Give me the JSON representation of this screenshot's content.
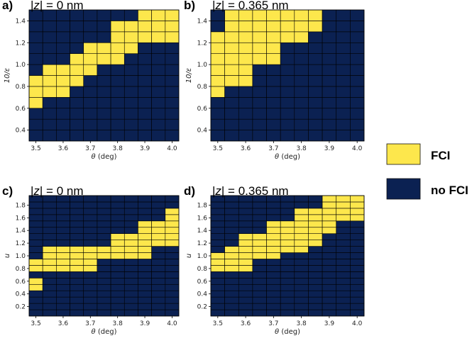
{
  "colors": {
    "fci": "#fde74c",
    "no_fci": "#0b2152",
    "grid": "#000000"
  },
  "legend": [
    {
      "key": "fci",
      "label": "FCI"
    },
    {
      "key": "no_fci",
      "label": "no FCI"
    }
  ],
  "chart_data": [
    {
      "type": "heatmap",
      "panel_label": "a)",
      "title_prefix": "|",
      "title_var": "z",
      "title_suffix": "| = 0 nm",
      "xlabel_var": "θ",
      "xlabel_unit": " (deg)",
      "ylabel": "10/ε",
      "x": [
        3.5,
        3.55,
        3.6,
        3.65,
        3.7,
        3.75,
        3.8,
        3.85,
        3.9,
        3.95,
        4.0
      ],
      "x_ticks": [
        3.5,
        3.6,
        3.7,
        3.8,
        3.9,
        4.0
      ],
      "x_tick_labels": [
        "3.5",
        "3.6",
        "3.7",
        "3.8",
        "3.9",
        "4.0"
      ],
      "y": [
        0.35,
        0.45,
        0.55,
        0.65,
        0.75,
        0.85,
        0.95,
        1.05,
        1.15,
        1.25,
        1.35,
        1.45
      ],
      "y_ticks": [
        0.4,
        0.6,
        0.8,
        1.0,
        1.2,
        1.4
      ],
      "y_tick_labels": [
        "0.4",
        "0.6",
        "0.8",
        "1.0",
        "1.2",
        "1.4"
      ],
      "values": [
        [
          0,
          0,
          0,
          0,
          0,
          0,
          0,
          0,
          0,
          0,
          0
        ],
        [
          0,
          0,
          0,
          0,
          0,
          0,
          0,
          0,
          0,
          0,
          0
        ],
        [
          0,
          0,
          0,
          0,
          0,
          0,
          0,
          0,
          0,
          0,
          0
        ],
        [
          1,
          0,
          0,
          0,
          0,
          0,
          0,
          0,
          0,
          0,
          0
        ],
        [
          1,
          1,
          1,
          0,
          0,
          0,
          0,
          0,
          0,
          0,
          0
        ],
        [
          1,
          1,
          1,
          1,
          0,
          0,
          0,
          0,
          0,
          0,
          0
        ],
        [
          0,
          1,
          1,
          1,
          1,
          0,
          0,
          0,
          0,
          0,
          0
        ],
        [
          0,
          0,
          0,
          1,
          1,
          1,
          1,
          0,
          0,
          0,
          0
        ],
        [
          0,
          0,
          0,
          0,
          1,
          1,
          1,
          1,
          0,
          0,
          0
        ],
        [
          0,
          0,
          0,
          0,
          0,
          0,
          1,
          1,
          1,
          1,
          1
        ],
        [
          0,
          0,
          0,
          0,
          0,
          0,
          1,
          1,
          1,
          1,
          1
        ],
        [
          0,
          0,
          0,
          0,
          0,
          0,
          0,
          0,
          1,
          1,
          1
        ]
      ]
    },
    {
      "type": "heatmap",
      "panel_label": "b)",
      "title_prefix": "|",
      "title_var": "z",
      "title_suffix": "| = 0.365 nm",
      "xlabel_var": "θ",
      "xlabel_unit": " (deg)",
      "ylabel": "10/ε",
      "x": [
        3.5,
        3.55,
        3.6,
        3.65,
        3.7,
        3.75,
        3.8,
        3.85,
        3.9,
        3.95,
        4.0
      ],
      "x_ticks": [
        3.5,
        3.6,
        3.7,
        3.8,
        3.9,
        4.0
      ],
      "x_tick_labels": [
        "3.5",
        "3.6",
        "3.7",
        "3.8",
        "3.9",
        "4.0"
      ],
      "y": [
        0.35,
        0.45,
        0.55,
        0.65,
        0.75,
        0.85,
        0.95,
        1.05,
        1.15,
        1.25,
        1.35,
        1.45
      ],
      "y_ticks": [
        0.4,
        0.6,
        0.8,
        1.0,
        1.2,
        1.4
      ],
      "y_tick_labels": [
        "0.4",
        "0.6",
        "0.8",
        "1.0",
        "1.2",
        "1.4"
      ],
      "values": [
        [
          0,
          0,
          0,
          0,
          0,
          0,
          0,
          0,
          0,
          0,
          0
        ],
        [
          0,
          0,
          0,
          0,
          0,
          0,
          0,
          0,
          0,
          0,
          0
        ],
        [
          0,
          0,
          0,
          0,
          0,
          0,
          0,
          0,
          0,
          0,
          0
        ],
        [
          0,
          0,
          0,
          0,
          0,
          0,
          0,
          0,
          0,
          0,
          0
        ],
        [
          1,
          0,
          0,
          0,
          0,
          0,
          0,
          0,
          0,
          0,
          0
        ],
        [
          1,
          1,
          1,
          0,
          0,
          0,
          0,
          0,
          0,
          0,
          0
        ],
        [
          1,
          1,
          1,
          0,
          0,
          0,
          0,
          0,
          0,
          0,
          0
        ],
        [
          1,
          1,
          1,
          1,
          1,
          0,
          0,
          0,
          0,
          0,
          0
        ],
        [
          1,
          1,
          1,
          1,
          1,
          0,
          0,
          0,
          0,
          0,
          0
        ],
        [
          1,
          1,
          1,
          1,
          1,
          1,
          1,
          0,
          0,
          0,
          0
        ],
        [
          0,
          1,
          1,
          1,
          1,
          1,
          1,
          1,
          0,
          0,
          0
        ],
        [
          0,
          1,
          1,
          1,
          1,
          1,
          1,
          1,
          0,
          0,
          0
        ]
      ]
    },
    {
      "type": "heatmap",
      "panel_label": "c)",
      "title_prefix": "|",
      "title_var": "z",
      "title_suffix": "| = 0 nm",
      "xlabel_var": "θ",
      "xlabel_unit": " (deg)",
      "ylabel": "u",
      "x": [
        3.5,
        3.55,
        3.6,
        3.65,
        3.7,
        3.75,
        3.8,
        3.85,
        3.9,
        3.95,
        4.0
      ],
      "x_ticks": [
        3.5,
        3.6,
        3.7,
        3.8,
        3.9,
        4.0
      ],
      "x_tick_labels": [
        "3.5",
        "3.6",
        "3.7",
        "3.8",
        "3.9",
        "4.0"
      ],
      "y": [
        0.1,
        0.2,
        0.3,
        0.4,
        0.5,
        0.6,
        0.7,
        0.8,
        0.9,
        1.0,
        1.1,
        1.2,
        1.3,
        1.4,
        1.5,
        1.6,
        1.7,
        1.8,
        1.9
      ],
      "y_ticks": [
        0.2,
        0.4,
        0.6,
        0.8,
        1.0,
        1.2,
        1.4,
        1.6,
        1.8
      ],
      "y_tick_labels": [
        "0.2",
        "0.4",
        "0.6",
        "0.8",
        "1.0",
        "1.2",
        "1.4",
        "1.6",
        "1.8"
      ],
      "values": [
        [
          0,
          0,
          0,
          0,
          0,
          0,
          0,
          0,
          0,
          0,
          0
        ],
        [
          0,
          0,
          0,
          0,
          0,
          0,
          0,
          0,
          0,
          0,
          0
        ],
        [
          0,
          0,
          0,
          0,
          0,
          0,
          0,
          0,
          0,
          0,
          0
        ],
        [
          0,
          0,
          0,
          0,
          0,
          0,
          0,
          0,
          0,
          0,
          0
        ],
        [
          1,
          0,
          0,
          0,
          0,
          0,
          0,
          0,
          0,
          0,
          0
        ],
        [
          1,
          0,
          0,
          0,
          0,
          0,
          0,
          0,
          0,
          0,
          0
        ],
        [
          0,
          0,
          0,
          0,
          0,
          0,
          0,
          0,
          0,
          0,
          0
        ],
        [
          1,
          1,
          1,
          1,
          1,
          0,
          0,
          0,
          0,
          0,
          0
        ],
        [
          1,
          1,
          1,
          1,
          1,
          0,
          0,
          0,
          0,
          0,
          0
        ],
        [
          0,
          1,
          1,
          1,
          1,
          1,
          1,
          1,
          1,
          0,
          0
        ],
        [
          0,
          1,
          1,
          1,
          1,
          1,
          1,
          1,
          1,
          0,
          0
        ],
        [
          0,
          0,
          0,
          0,
          0,
          0,
          1,
          1,
          1,
          1,
          1
        ],
        [
          0,
          0,
          0,
          0,
          0,
          0,
          1,
          1,
          1,
          1,
          1
        ],
        [
          0,
          0,
          0,
          0,
          0,
          0,
          0,
          0,
          1,
          1,
          1
        ],
        [
          0,
          0,
          0,
          0,
          0,
          0,
          0,
          0,
          1,
          1,
          1
        ],
        [
          0,
          0,
          0,
          0,
          0,
          0,
          0,
          0,
          0,
          0,
          1
        ],
        [
          0,
          0,
          0,
          0,
          0,
          0,
          0,
          0,
          0,
          0,
          1
        ],
        [
          0,
          0,
          0,
          0,
          0,
          0,
          0,
          0,
          0,
          0,
          0
        ],
        [
          0,
          0,
          0,
          0,
          0,
          0,
          0,
          0,
          0,
          0,
          0
        ]
      ]
    },
    {
      "type": "heatmap",
      "panel_label": "d)",
      "title_prefix": "|",
      "title_var": "z",
      "title_suffix": "| = 0.365 nm",
      "xlabel_var": "θ",
      "xlabel_unit": " (deg)",
      "ylabel": "u",
      "x": [
        3.5,
        3.55,
        3.6,
        3.65,
        3.7,
        3.75,
        3.8,
        3.85,
        3.9,
        3.95,
        4.0
      ],
      "x_ticks": [
        3.5,
        3.6,
        3.7,
        3.8,
        3.9,
        4.0
      ],
      "x_tick_labels": [
        "3.5",
        "3.6",
        "3.7",
        "3.8",
        "3.9",
        "4.0"
      ],
      "y": [
        0.1,
        0.2,
        0.3,
        0.4,
        0.5,
        0.6,
        0.7,
        0.8,
        0.9,
        1.0,
        1.1,
        1.2,
        1.3,
        1.4,
        1.5,
        1.6,
        1.7,
        1.8,
        1.9
      ],
      "y_ticks": [
        0.2,
        0.4,
        0.6,
        0.8,
        1.0,
        1.2,
        1.4,
        1.6,
        1.8
      ],
      "y_tick_labels": [
        "0.2",
        "0.4",
        "0.6",
        "0.8",
        "1.0",
        "1.2",
        "1.4",
        "1.6",
        "1.8"
      ],
      "values": [
        [
          0,
          0,
          0,
          0,
          0,
          0,
          0,
          0,
          0,
          0,
          0
        ],
        [
          0,
          0,
          0,
          0,
          0,
          0,
          0,
          0,
          0,
          0,
          0
        ],
        [
          0,
          0,
          0,
          0,
          0,
          0,
          0,
          0,
          0,
          0,
          0
        ],
        [
          0,
          0,
          0,
          0,
          0,
          0,
          0,
          0,
          0,
          0,
          0
        ],
        [
          0,
          0,
          0,
          0,
          0,
          0,
          0,
          0,
          0,
          0,
          0
        ],
        [
          0,
          0,
          0,
          0,
          0,
          0,
          0,
          0,
          0,
          0,
          0
        ],
        [
          0,
          0,
          0,
          0,
          0,
          0,
          0,
          0,
          0,
          0,
          0
        ],
        [
          1,
          1,
          1,
          0,
          0,
          0,
          0,
          0,
          0,
          0,
          0
        ],
        [
          1,
          1,
          1,
          0,
          0,
          0,
          0,
          0,
          0,
          0,
          0
        ],
        [
          1,
          1,
          1,
          1,
          1,
          0,
          0,
          0,
          0,
          0,
          0
        ],
        [
          0,
          1,
          1,
          1,
          1,
          1,
          1,
          0,
          0,
          0,
          0
        ],
        [
          0,
          0,
          1,
          1,
          1,
          1,
          1,
          1,
          0,
          0,
          0
        ],
        [
          0,
          0,
          1,
          1,
          1,
          1,
          1,
          1,
          0,
          0,
          0
        ],
        [
          0,
          0,
          0,
          0,
          1,
          1,
          1,
          1,
          1,
          0,
          0
        ],
        [
          0,
          0,
          0,
          0,
          1,
          1,
          1,
          1,
          1,
          0,
          0
        ],
        [
          0,
          0,
          0,
          0,
          0,
          0,
          1,
          1,
          1,
          1,
          1
        ],
        [
          0,
          0,
          0,
          0,
          0,
          0,
          1,
          1,
          1,
          1,
          1
        ],
        [
          0,
          0,
          0,
          0,
          0,
          0,
          0,
          0,
          1,
          1,
          1
        ],
        [
          0,
          0,
          0,
          0,
          0,
          0,
          0,
          0,
          1,
          1,
          1
        ]
      ]
    }
  ]
}
